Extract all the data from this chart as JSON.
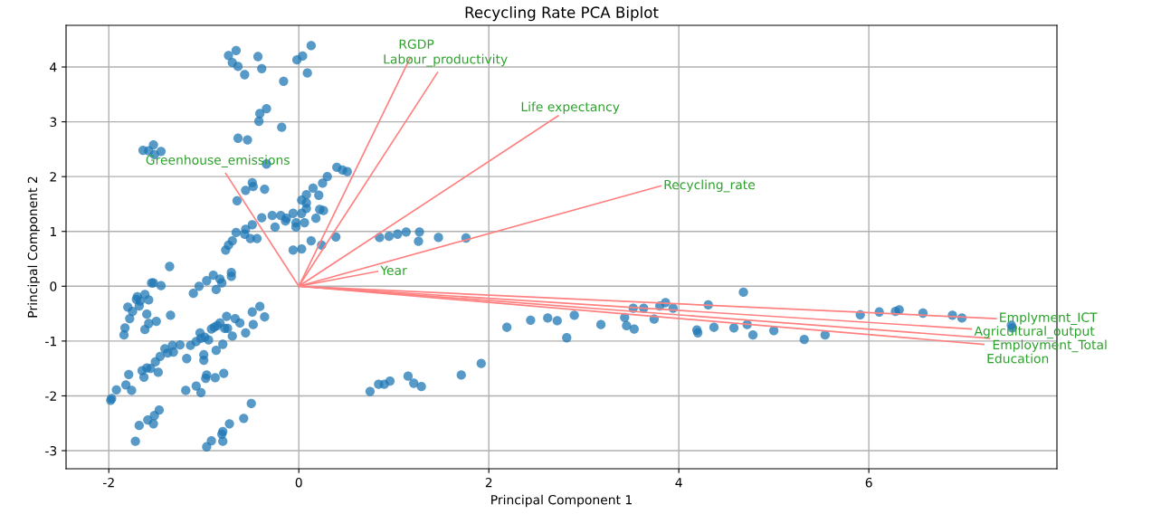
{
  "chart_data": {
    "type": "scatter",
    "title": "Recycling Rate PCA Biplot",
    "xlabel": "Principal Component 1",
    "ylabel": "Principal Component 2",
    "xlim": [
      -2.45,
      7.98
    ],
    "ylim": [
      -3.33,
      4.76
    ],
    "xticks": [
      -2,
      0,
      2,
      4,
      6
    ],
    "yticks": [
      -3,
      -2,
      -1,
      0,
      1,
      2,
      3,
      4
    ],
    "grid": true,
    "series": [
      {
        "color": "#1f77b4",
        "x": [
          0.13,
          -0.66,
          -0.74,
          -0.43,
          0.04,
          -0.02,
          -0.7,
          -0.64,
          -0.39,
          0.09,
          -0.57,
          -0.16,
          -0.34,
          -0.41,
          -0.42,
          -0.18,
          -0.64,
          -0.54,
          -1.64,
          -1.53,
          -1.45,
          -1.52,
          -1.58,
          -0.34,
          0.4,
          0.46,
          0.51,
          0.3,
          0.25,
          -0.49,
          -0.48,
          -0.56,
          -0.36,
          0.15,
          0.21,
          0.08,
          -0.65,
          0.03,
          0.08,
          0.08,
          0.22,
          0.26,
          0.18,
          -0.39,
          -0.28,
          -0.19,
          -0.13,
          -0.06,
          0.03,
          -0.14,
          -0.03,
          0.06,
          -0.25,
          -0.03,
          -0.49,
          -0.56,
          -0.66,
          -0.57,
          -0.51,
          -0.44,
          -0.7,
          -0.74,
          -0.77,
          0.39,
          0.85,
          0.95,
          1.04,
          1.13,
          1.27,
          1.26,
          1.47,
          1.76,
          0.13,
          0.24,
          -0.06,
          0.03,
          2.19,
          2.44,
          2.62,
          2.72,
          2.9,
          2.82,
          3.18,
          3.43,
          3.45,
          3.53,
          3.52,
          3.63,
          3.8,
          3.86,
          3.94,
          3.74,
          4.31,
          4.19,
          4.2,
          4.37,
          0.75,
          0.84,
          0.9,
          0.96,
          1.15,
          1.21,
          1.29,
          1.71,
          1.92,
          4.68,
          4.58,
          4.72,
          4.78,
          5.0,
          5.32,
          5.54,
          5.91,
          6.11,
          6.28,
          6.32,
          6.57,
          6.88,
          6.98,
          7.5,
          7.51,
          -1.36,
          -0.71,
          -0.71,
          -0.9,
          -0.83,
          -0.97,
          -0.81,
          -1.05,
          -0.87,
          -1.11,
          -1.53,
          -1.55,
          -1.45,
          -1.7,
          -1.62,
          -1.67,
          -1.58,
          -1.71,
          -1.8,
          -1.68,
          -1.75,
          -1.6,
          -1.35,
          -1.78,
          -1.5,
          -1.58,
          -1.83,
          -1.62,
          -1.84,
          -0.41,
          -0.49,
          -0.36,
          -0.76,
          -0.67,
          -0.62,
          -0.48,
          -0.56,
          -0.7,
          -0.83,
          -0.89,
          -0.86,
          -0.78,
          -0.75,
          -0.92,
          -1.04,
          -0.99,
          -1.03,
          -0.95,
          -0.8,
          -0.87,
          -1.33,
          -1.25,
          -1.14,
          -1.08,
          -1.41,
          -1.38,
          -1.46,
          -1.32,
          -1.18,
          -1.0,
          -1.0,
          -1.51,
          -1.6,
          -1.65,
          -1.56,
          -1.48,
          -1.63,
          -1.79,
          -0.97,
          -0.98,
          -0.88,
          -0.79,
          -1.82,
          -1.76,
          -1.92,
          -1.97,
          -1.98,
          -1.08,
          -1.19,
          -1.03,
          -0.5,
          -1.47,
          -1.52,
          -1.59,
          -1.53,
          -1.68,
          -1.72,
          -0.58,
          -0.73,
          -0.8,
          -0.81,
          -0.92,
          -0.8,
          -0.97
        ],
        "marker": "circle",
        "values": [
          4.39,
          4.3,
          4.21,
          4.19,
          4.2,
          4.13,
          4.08,
          4.01,
          3.97,
          3.89,
          3.86,
          3.74,
          3.24,
          3.15,
          3.01,
          2.9,
          2.7,
          2.67,
          2.48,
          2.58,
          2.46,
          2.4,
          2.47,
          2.23,
          2.17,
          2.12,
          2.09,
          2.0,
          1.88,
          1.89,
          1.82,
          1.75,
          1.77,
          1.79,
          1.66,
          1.67,
          1.56,
          1.57,
          1.52,
          1.42,
          1.4,
          1.38,
          1.24,
          1.25,
          1.29,
          1.29,
          1.24,
          1.33,
          1.33,
          1.19,
          1.16,
          1.16,
          1.08,
          1.08,
          1.12,
          1.04,
          0.98,
          0.95,
          0.87,
          0.87,
          0.83,
          0.75,
          0.66,
          0.9,
          0.89,
          0.91,
          0.95,
          0.99,
          0.99,
          0.82,
          0.89,
          0.88,
          0.83,
          0.75,
          0.66,
          0.68,
          -0.75,
          -0.62,
          -0.58,
          -0.63,
          -0.53,
          -0.94,
          -0.7,
          -0.57,
          -0.72,
          -0.78,
          -0.4,
          -0.4,
          -0.36,
          -0.3,
          -0.4,
          -0.6,
          -0.34,
          -0.8,
          -0.85,
          -0.75,
          -1.92,
          -1.79,
          -1.79,
          -1.73,
          -1.64,
          -1.77,
          -1.83,
          -1.62,
          -1.41,
          -0.11,
          -0.76,
          -0.7,
          -0.89,
          -0.81,
          -0.97,
          -0.89,
          -0.52,
          -0.47,
          -0.46,
          -0.43,
          -0.49,
          -0.53,
          -0.58,
          -0.71,
          -0.76,
          0.36,
          0.25,
          0.18,
          0.2,
          0.13,
          0.1,
          0.06,
          0.0,
          -0.06,
          -0.13,
          0.06,
          0.06,
          0.01,
          -0.19,
          -0.15,
          -0.27,
          -0.25,
          -0.24,
          -0.38,
          -0.36,
          -0.46,
          -0.51,
          -0.53,
          -0.59,
          -0.64,
          -0.68,
          -0.76,
          -0.79,
          -0.89,
          -0.37,
          -0.47,
          -0.56,
          -0.55,
          -0.59,
          -0.67,
          -0.7,
          -0.85,
          -0.91,
          -0.67,
          -0.75,
          -0.72,
          -0.77,
          -0.77,
          -0.78,
          -0.85,
          -0.93,
          -0.95,
          -0.98,
          -1.06,
          -1.17,
          -1.08,
          -1.07,
          -1.08,
          -1.01,
          -1.14,
          -1.22,
          -1.28,
          -1.2,
          -1.32,
          -1.25,
          -1.35,
          -1.38,
          -1.49,
          -1.54,
          -1.5,
          -1.57,
          -1.66,
          -1.61,
          -1.62,
          -1.68,
          -1.67,
          -1.59,
          -1.8,
          -1.9,
          -1.89,
          -2.05,
          -2.08,
          -1.82,
          -1.9,
          -1.94,
          -2.14,
          -2.26,
          -2.36,
          -2.44,
          -2.51,
          -2.54,
          -2.83,
          -2.41,
          -2.51,
          -2.65,
          -2.7,
          -2.82,
          -2.83,
          -2.93
        ]
      },
      {
        "type": "line",
        "name": "RGDP",
        "color": "#ff8080",
        "x": [
          0,
          1.17
        ],
        "values": [
          0,
          4.16
        ]
      },
      {
        "type": "line",
        "name": "Labour_productivity",
        "color": "#ff8080",
        "x": [
          0,
          1.46
        ],
        "values": [
          0,
          3.9
        ]
      },
      {
        "type": "line",
        "name": "Life expectancy",
        "color": "#ff8080",
        "x": [
          0,
          2.73
        ],
        "values": [
          0,
          3.11
        ]
      },
      {
        "type": "line",
        "name": "Recycling_rate",
        "color": "#ff8080",
        "x": [
          0,
          3.81
        ],
        "values": [
          0,
          1.83
        ]
      },
      {
        "type": "line",
        "name": "Greenhouse_emissions",
        "color": "#ff8080",
        "x": [
          0,
          -0.77
        ],
        "values": [
          0,
          2.06
        ]
      },
      {
        "type": "line",
        "name": "Year",
        "color": "#ff8080",
        "x": [
          0,
          0.83
        ],
        "values": [
          0,
          0.27
        ]
      },
      {
        "type": "line",
        "name": "Emplyment_ICT",
        "color": "#ff8080",
        "x": [
          0,
          7.34
        ],
        "values": [
          0,
          -0.59
        ]
      },
      {
        "type": "line",
        "name": "Agricultural_output",
        "color": "#ff8080",
        "x": [
          0,
          7.08
        ],
        "values": [
          0,
          -0.78
        ]
      },
      {
        "type": "line",
        "name": "Employment_Total",
        "color": "#ff8080",
        "x": [
          0,
          7.27
        ],
        "values": [
          0,
          -0.95
        ]
      },
      {
        "type": "line",
        "name": "Education",
        "color": "#ff8080",
        "x": [
          0,
          7.21
        ],
        "values": [
          0,
          -1.06
        ]
      }
    ]
  }
}
